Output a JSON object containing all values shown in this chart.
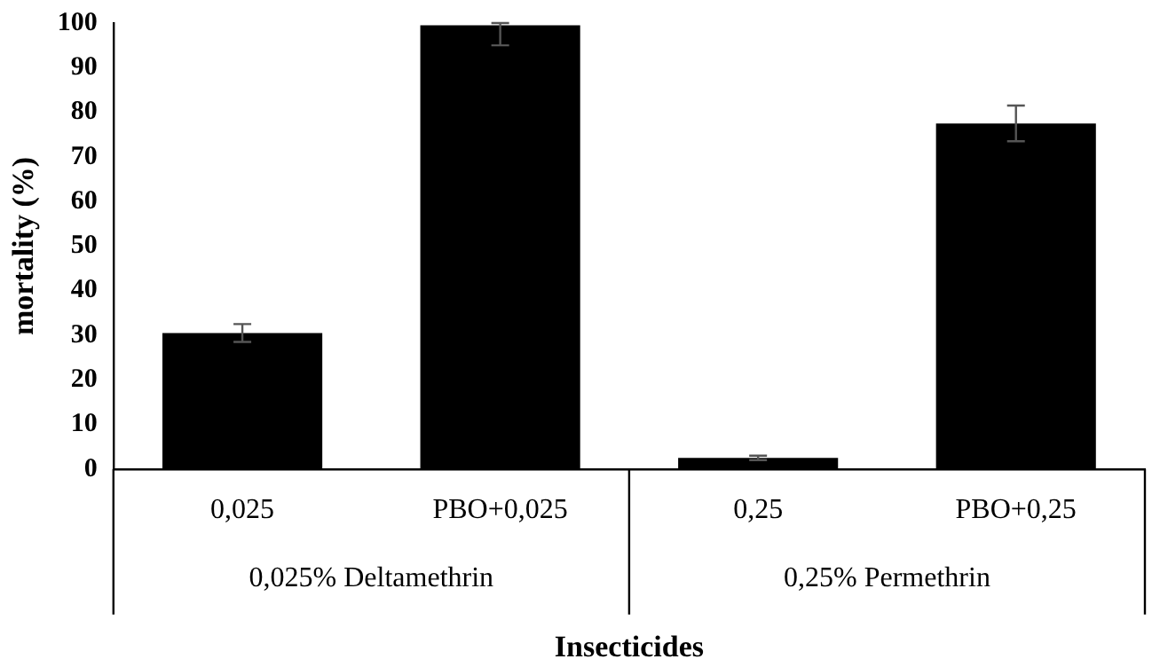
{
  "chart_data": {
    "type": "bar",
    "xlabel": "Insecticides",
    "ylabel": "mortality (%)",
    "categories": [
      "0,025",
      "PBO+0,025",
      "0,25",
      "PBO+0,25"
    ],
    "values": [
      30.5,
      99.5,
      2.5,
      77.5
    ],
    "errors": [
      2,
      [
        95,
        100
      ],
      0.5,
      4
    ],
    "color": "#000000",
    "annotations": [
      "0,025% Deltamethrin",
      "0,25% Permethrin"
    ],
    "ylim": [
      0,
      100
    ],
    "yticks": [
      0,
      10,
      20,
      30,
      40,
      50,
      60,
      70,
      80,
      90,
      100
    ],
    "grid": false,
    "legend": false
  }
}
